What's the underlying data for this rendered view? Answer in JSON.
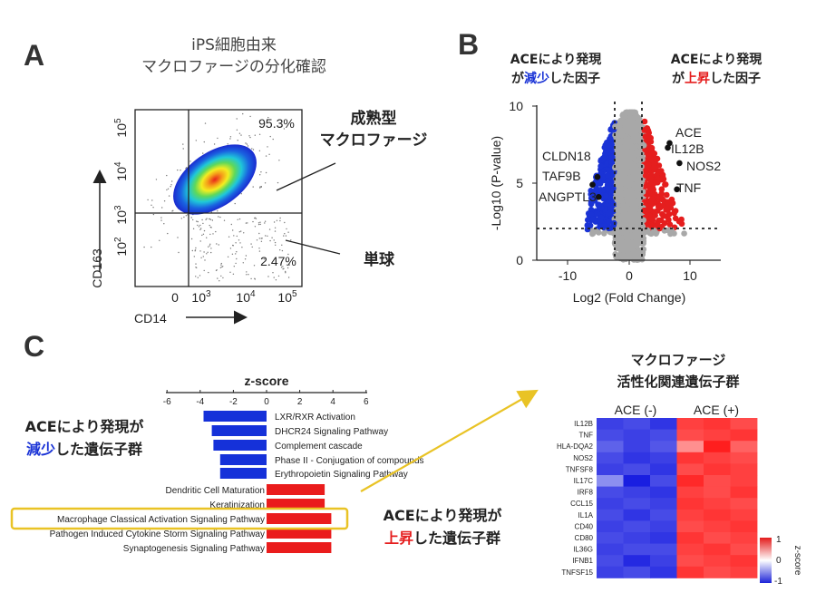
{
  "panels": {
    "A": "A",
    "B": "B",
    "C": "C"
  },
  "panelA": {
    "title_line1": "iPS細胞由来",
    "title_line2": "マクロファージの分化確認",
    "q_upper_right": "95.3%",
    "q_lower_right": "2.47%",
    "label_mature_line1": "成熟型",
    "label_mature_line2": "マクロファージ",
    "label_monocyte": "単球",
    "x_axis_label": "CD14",
    "y_axis_label": "CD163",
    "x_ticks": [
      "0",
      "10",
      "10",
      "10"
    ],
    "x_tick_exps": [
      "",
      "3",
      "4",
      "5"
    ],
    "y_ticks": [
      "10",
      "10",
      "10",
      "10"
    ],
    "y_tick_exps": [
      "5",
      "4",
      "3",
      "2"
    ]
  },
  "panelB": {
    "header_left_pre": "ACEにより発現",
    "header_left_line2_pre": "が",
    "header_left_emph": "減少",
    "header_left_post": "した因子",
    "header_right_pre": "ACEにより発現",
    "header_right_line2_pre": "が",
    "header_right_emph": "上昇",
    "header_right_post": "した因子",
    "x_axis_label": "Log2 (Fold Change)",
    "y_axis_label": "-Log10 (P-value)",
    "x_ticks": [
      "-10",
      "0",
      "10"
    ],
    "y_ticks": [
      "0",
      "5",
      "10"
    ],
    "genes_left": [
      "CLDN18",
      "TAF9B",
      "ANGPTL3"
    ],
    "genes_right": [
      "ACE",
      "IL12B",
      "NOS2",
      "TNF"
    ],
    "colors": {
      "down": "#1a33d6",
      "up": "#e51e1e",
      "ns": "#a8a8a8"
    }
  },
  "chart_data": [
    {
      "type": "bar",
      "title": "z-score",
      "xlim": [
        -6,
        6
      ],
      "x_ticks": [
        "-6",
        "-4",
        "-2",
        "0",
        "2",
        "4",
        "6"
      ],
      "categories": [
        "LXR/RXR Activation",
        "DHCR24 Signaling Pathway",
        "Complement cascade",
        "Phase II - Conjugation of compounds",
        "Erythropoietin Signaling Pathway",
        "Dendritic Cell Maturation",
        "Keratinization",
        "Macrophage Classical Activation Signaling Pathway",
        "Pathogen Induced Cytokine Storm Signaling Pathway",
        "Synaptogenesis Signaling Pathway"
      ],
      "values": [
        -3.8,
        -3.3,
        -3.2,
        -2.8,
        -2.8,
        3.5,
        3.5,
        3.9,
        3.9,
        3.9
      ],
      "highlighted": "Macrophage Classical Activation Signaling Pathway",
      "colors": {
        "negative": "#1531d9",
        "positive": "#ea1c1c"
      }
    },
    {
      "type": "heatmap",
      "title_line1": "マクロファージ",
      "title_line2": "活性化関連遺伝子群",
      "columns": [
        "ACE (-)",
        "ACE (+)"
      ],
      "rows": [
        "IL12B",
        "TNF",
        "HLA-DQA2",
        "NOS2",
        "TNFSF8",
        "IL17C",
        "IRF8",
        "CCL15",
        "IL1A",
        "CD40",
        "CD80",
        "IL36G",
        "IFNB1",
        "TNFSF15"
      ],
      "values": [
        [
          -0.85,
          -0.8,
          -0.9,
          0.85,
          0.9,
          0.8
        ],
        [
          -0.8,
          -0.85,
          -0.8,
          0.8,
          0.85,
          0.9
        ],
        [
          -0.7,
          -0.85,
          -0.75,
          0.5,
          1.0,
          0.7
        ],
        [
          -0.8,
          -0.9,
          -0.85,
          0.9,
          0.85,
          0.8
        ],
        [
          -0.85,
          -0.8,
          -0.9,
          0.8,
          0.9,
          0.85
        ],
        [
          -0.5,
          -1.0,
          -0.8,
          0.95,
          0.8,
          0.85
        ],
        [
          -0.8,
          -0.85,
          -0.9,
          0.85,
          0.8,
          0.9
        ],
        [
          -0.85,
          -0.8,
          -0.85,
          0.9,
          0.85,
          0.8
        ],
        [
          -0.8,
          -0.9,
          -0.8,
          0.85,
          0.9,
          0.85
        ],
        [
          -0.85,
          -0.8,
          -0.85,
          0.8,
          0.85,
          0.9
        ],
        [
          -0.8,
          -0.85,
          -0.9,
          0.9,
          0.8,
          0.85
        ],
        [
          -0.85,
          -0.8,
          -0.8,
          0.85,
          0.9,
          0.8
        ],
        [
          -0.8,
          -0.95,
          -0.85,
          0.8,
          0.85,
          0.9
        ],
        [
          -0.85,
          -0.8,
          -0.9,
          0.9,
          0.8,
          0.85
        ]
      ],
      "legend_title": "z-score",
      "legend_ticks": [
        "1",
        "0",
        "-1"
      ]
    }
  ],
  "panelC": {
    "left_label_line1": "ACEにより発現が",
    "left_label_emph": "減少",
    "left_label_post": "した遺伝子群",
    "right_label_line1": "ACEにより発現が",
    "right_label_emph": "上昇",
    "right_label_post": "した遺伝子群",
    "highlight_color": "#e9c325",
    "arrow_color": "#e9c325"
  }
}
